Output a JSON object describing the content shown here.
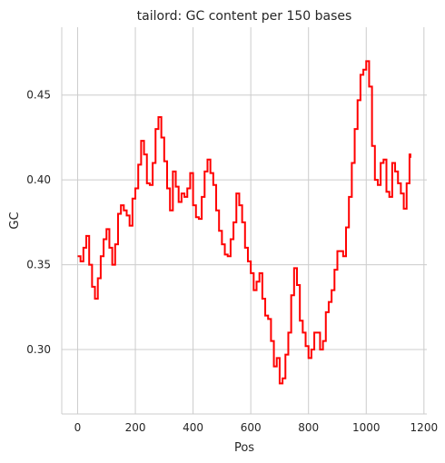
{
  "chart_data": {
    "type": "line",
    "title": "tailord: GC content per 150 bases",
    "xlabel": "Pos",
    "ylabel": "GC",
    "xlim": [
      -55,
      1210
    ],
    "ylim": [
      0.262,
      0.49
    ],
    "xticks": [
      0,
      200,
      400,
      600,
      800,
      1000,
      1200
    ],
    "xtick_labels": [
      "0",
      "200",
      "400",
      "600",
      "800",
      "1000",
      "1200"
    ],
    "yticks": [
      0.3,
      0.35,
      0.4,
      0.45
    ],
    "ytick_labels": [
      "0.30",
      "0.35",
      "0.40",
      "0.45"
    ],
    "grid": true,
    "series": [
      {
        "color": "#ff0000",
        "x": [
          0,
          10,
          20,
          30,
          40,
          50,
          60,
          70,
          80,
          90,
          100,
          110,
          120,
          130,
          140,
          150,
          160,
          170,
          180,
          190,
          200,
          210,
          220,
          230,
          240,
          250,
          260,
          270,
          280,
          290,
          300,
          310,
          320,
          330,
          340,
          350,
          360,
          370,
          380,
          390,
          400,
          410,
          420,
          430,
          440,
          450,
          460,
          470,
          480,
          490,
          500,
          510,
          520,
          530,
          540,
          550,
          560,
          570,
          580,
          590,
          600,
          610,
          620,
          630,
          640,
          650,
          660,
          670,
          680,
          690,
          700,
          710,
          720,
          730,
          740,
          750,
          760,
          770,
          780,
          790,
          800,
          810,
          820,
          830,
          840,
          850,
          860,
          870,
          880,
          890,
          900,
          910,
          920,
          930,
          940,
          950,
          960,
          970,
          980,
          990,
          1000,
          1010,
          1020,
          1030,
          1040,
          1050,
          1060,
          1070,
          1080,
          1090,
          1100,
          1110,
          1120,
          1130,
          1140,
          1150,
          1153
        ],
        "y": [
          0.355,
          0.352,
          0.36,
          0.367,
          0.35,
          0.337,
          0.33,
          0.342,
          0.355,
          0.365,
          0.371,
          0.36,
          0.35,
          0.362,
          0.38,
          0.385,
          0.382,
          0.379,
          0.373,
          0.389,
          0.395,
          0.409,
          0.423,
          0.415,
          0.398,
          0.397,
          0.41,
          0.43,
          0.437,
          0.425,
          0.411,
          0.395,
          0.382,
          0.405,
          0.396,
          0.387,
          0.392,
          0.39,
          0.395,
          0.404,
          0.385,
          0.378,
          0.377,
          0.39,
          0.405,
          0.412,
          0.404,
          0.397,
          0.382,
          0.37,
          0.362,
          0.356,
          0.355,
          0.365,
          0.375,
          0.392,
          0.385,
          0.375,
          0.36,
          0.352,
          0.345,
          0.335,
          0.34,
          0.345,
          0.33,
          0.32,
          0.318,
          0.305,
          0.29,
          0.295,
          0.28,
          0.283,
          0.297,
          0.31,
          0.332,
          0.348,
          0.338,
          0.317,
          0.31,
          0.302,
          0.295,
          0.3,
          0.31,
          0.31,
          0.3,
          0.305,
          0.322,
          0.328,
          0.335,
          0.347,
          0.358,
          0.358,
          0.355,
          0.372,
          0.39,
          0.41,
          0.43,
          0.447,
          0.462,
          0.465,
          0.47,
          0.455,
          0.42,
          0.4,
          0.397,
          0.41,
          0.412,
          0.393,
          0.39,
          0.41,
          0.405,
          0.398,
          0.392,
          0.383,
          0.398,
          0.415,
          0.413
        ]
      }
    ]
  }
}
